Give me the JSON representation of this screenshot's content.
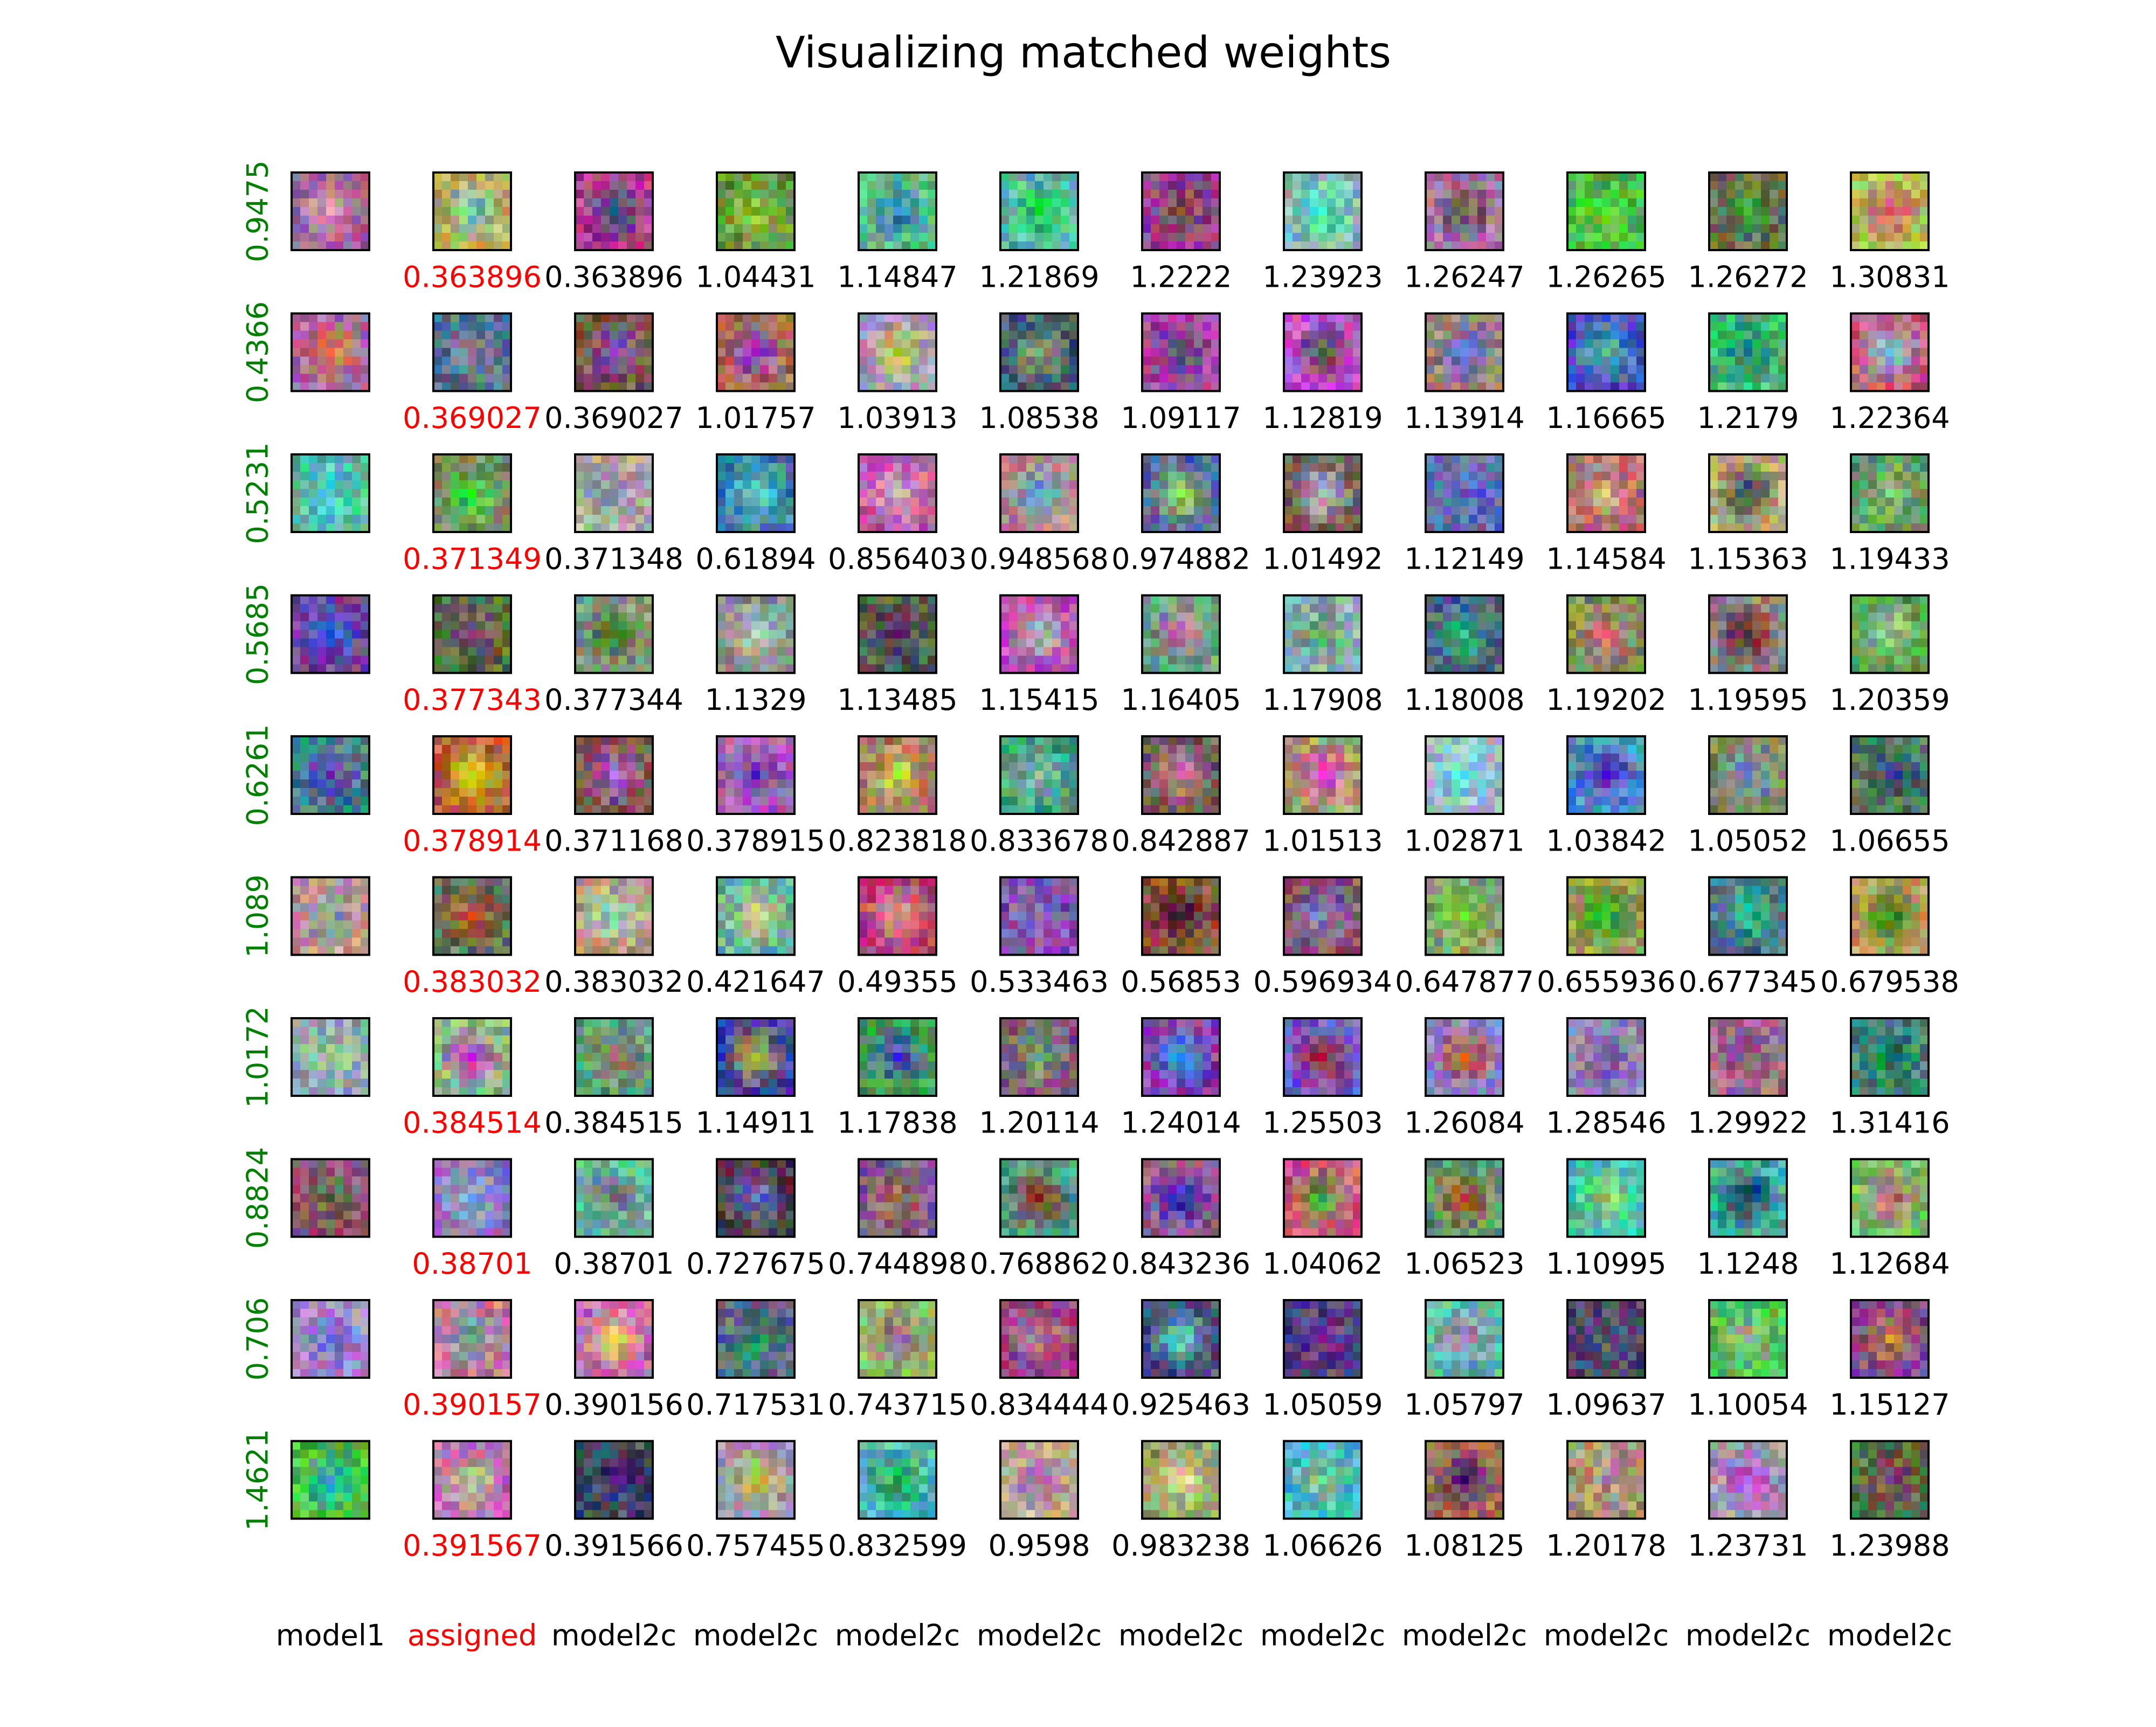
{
  "title": "Visualizing matched weights",
  "rows": [
    {
      "label": "0.9475",
      "values": [
        "0.363896",
        "0.363896",
        "1.04431",
        "1.14847",
        "1.21869",
        "1.2222",
        "1.23923",
        "1.26247",
        "1.26265",
        "1.26272",
        "1.30831"
      ]
    },
    {
      "label": "0.4366",
      "values": [
        "0.369027",
        "0.369027",
        "1.01757",
        "1.03913",
        "1.08538",
        "1.09117",
        "1.12819",
        "1.13914",
        "1.16665",
        "1.2179",
        "1.22364"
      ]
    },
    {
      "label": "0.5231",
      "values": [
        "0.371349",
        "0.371348",
        "0.61894",
        "0.856403",
        "0.948568",
        "0.974882",
        "1.01492",
        "1.12149",
        "1.14584",
        "1.15363",
        "1.19433"
      ]
    },
    {
      "label": "0.5685",
      "values": [
        "0.377343",
        "0.377344",
        "1.1329",
        "1.13485",
        "1.15415",
        "1.16405",
        "1.17908",
        "1.18008",
        "1.19202",
        "1.19595",
        "1.20359"
      ]
    },
    {
      "label": "0.6261",
      "values": [
        "0.378914",
        "0.371168",
        "0.378915",
        "0.823818",
        "0.833678",
        "0.842887",
        "1.01513",
        "1.02871",
        "1.03842",
        "1.05052",
        "1.06655"
      ]
    },
    {
      "label": "1.089",
      "values": [
        "0.383032",
        "0.383032",
        "0.421647",
        "0.49355",
        "0.533463",
        "0.56853",
        "0.596934",
        "0.647877",
        "0.655936",
        "0.677345",
        "0.679538"
      ]
    },
    {
      "label": "1.0172",
      "values": [
        "0.384514",
        "0.384515",
        "1.14911",
        "1.17838",
        "1.20114",
        "1.24014",
        "1.25503",
        "1.26084",
        "1.28546",
        "1.29922",
        "1.31416"
      ]
    },
    {
      "label": "0.8824",
      "values": [
        "0.38701",
        "0.38701",
        "0.727675",
        "0.744898",
        "0.768862",
        "0.843236",
        "1.04062",
        "1.06523",
        "1.10995",
        "1.1248",
        "1.12684"
      ]
    },
    {
      "label": "0.706",
      "values": [
        "0.390157",
        "0.390156",
        "0.717531",
        "0.743715",
        "0.834444",
        "0.925463",
        "1.05059",
        "1.05797",
        "1.09637",
        "1.10054",
        "1.15127"
      ]
    },
    {
      "label": "1.4621",
      "values": [
        "0.391567",
        "0.391566",
        "0.757455",
        "0.832599",
        "0.9598",
        "0.983238",
        "1.06626",
        "1.08125",
        "1.20178",
        "1.23731",
        "1.23988"
      ]
    }
  ],
  "columns": [
    "model1",
    "assigned",
    "model2c",
    "model2c",
    "model2c",
    "model2c",
    "model2c",
    "model2c",
    "model2c",
    "model2c",
    "model2c",
    "model2c"
  ]
}
